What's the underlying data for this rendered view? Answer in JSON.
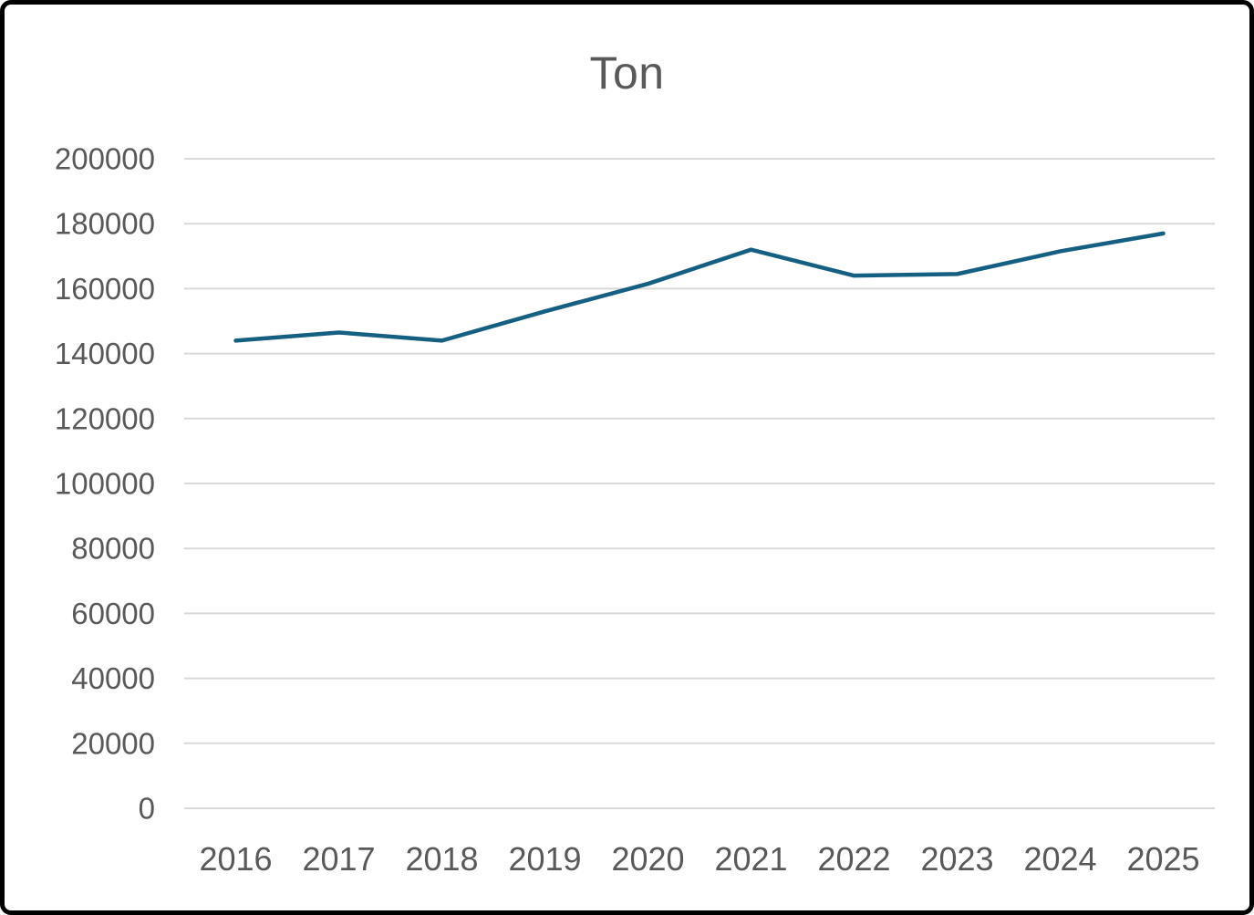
{
  "chart_data": {
    "type": "line",
    "title": "Ton",
    "categories": [
      "2016",
      "2017",
      "2018",
      "2019",
      "2020",
      "2021",
      "2022",
      "2023",
      "2024",
      "2025"
    ],
    "series": [
      {
        "name": "Ton",
        "values": [
          144000,
          146500,
          144000,
          153000,
          161500,
          172000,
          164000,
          164500,
          171500,
          177000
        ]
      }
    ],
    "xlabel": "",
    "ylabel": "",
    "ylim": [
      0,
      200000
    ],
    "y_tick_step": 20000,
    "y_ticks": [
      0,
      20000,
      40000,
      60000,
      80000,
      100000,
      120000,
      140000,
      160000,
      180000,
      200000
    ],
    "grid": "horizontal",
    "legend": "none",
    "colors": {
      "line": "#156082",
      "gridline": "#D9D9D9",
      "text": "#595959",
      "background": "#FFFFFF",
      "frame_border": "#000000"
    }
  }
}
